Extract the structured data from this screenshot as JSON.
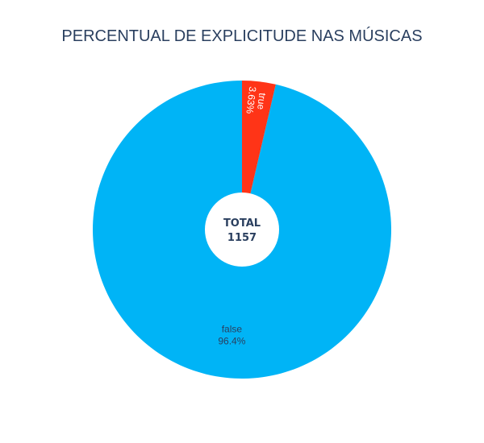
{
  "chart_data": {
    "type": "pie",
    "title": "PERCENTUAL DE EXPLICITUDE NAS MÚSICAS",
    "slices": [
      {
        "label": "false",
        "value": 1115,
        "percent_label": "96.4%",
        "color": "#00b4f6"
      },
      {
        "label": "true",
        "value": 42,
        "percent_label": "3.63%",
        "color": "#ff3417"
      }
    ],
    "hole_label": "TOTAL",
    "hole_value": "1157"
  }
}
